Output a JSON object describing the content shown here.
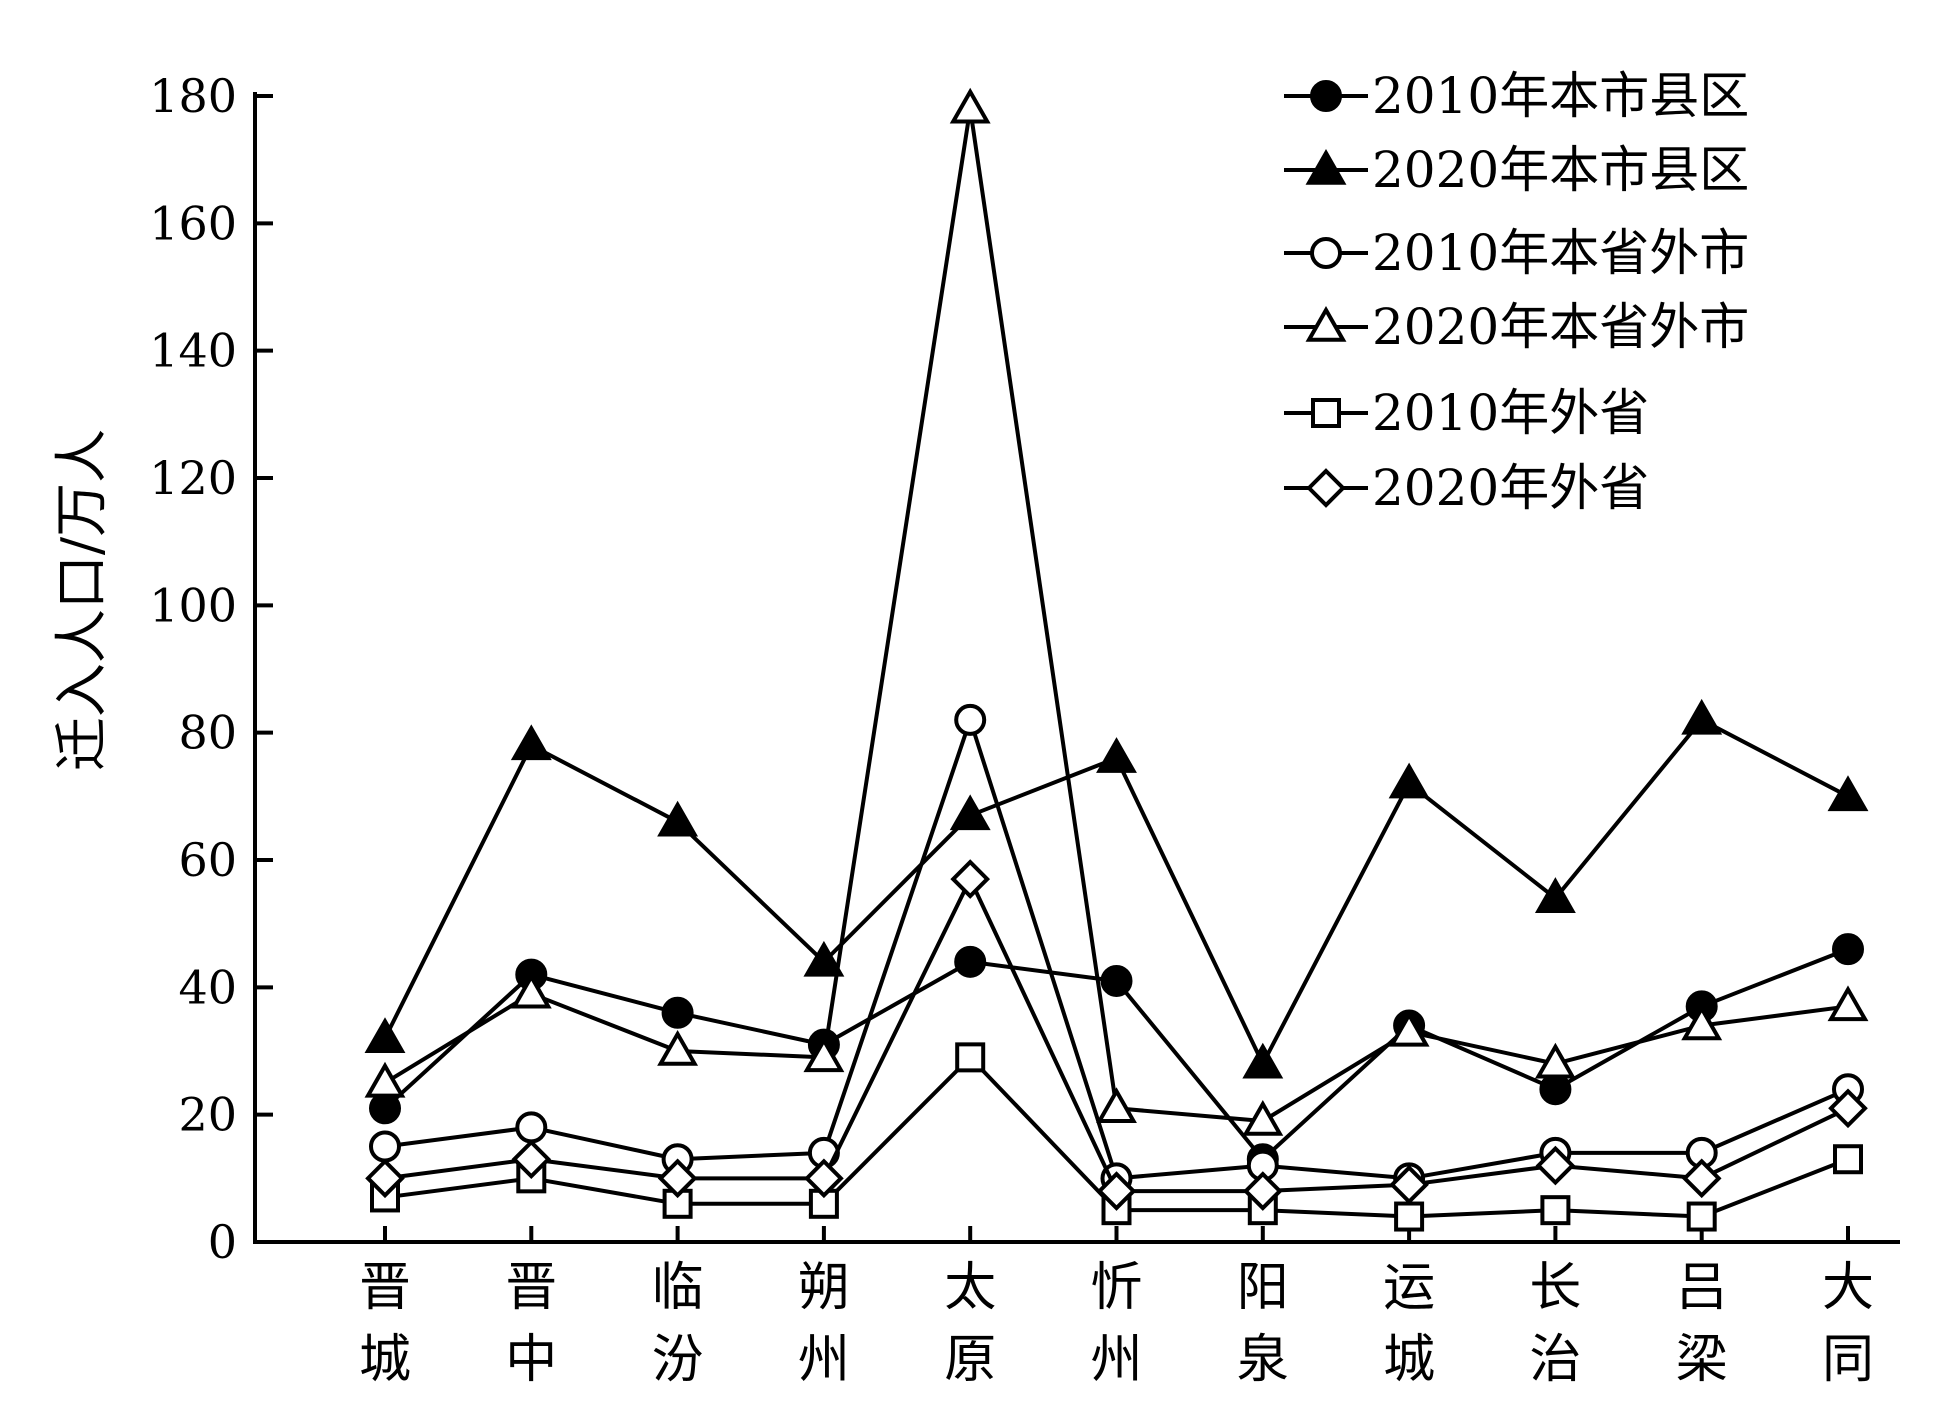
{
  "chart_data": {
    "type": "line",
    "ylabel": "迁入人口/万人",
    "ylim": [
      0,
      180
    ],
    "yticks": [
      0,
      20,
      40,
      60,
      80,
      100,
      120,
      140,
      160,
      180
    ],
    "categories": [
      "晋城",
      "晋中",
      "临汾",
      "朔州",
      "太原",
      "忻州",
      "阳泉",
      "运城",
      "长治",
      "吕梁",
      "大同"
    ],
    "legend_position": "top-right",
    "grid": false,
    "series": [
      {
        "name": "2010年本市县区",
        "marker": "circle-filled",
        "values": [
          21,
          42,
          36,
          31,
          44,
          41,
          13,
          34,
          24,
          37,
          46
        ]
      },
      {
        "name": "2020年本市县区",
        "marker": "triangle-filled",
        "values": [
          32,
          78,
          66,
          44,
          67,
          76,
          28,
          72,
          54,
          82,
          70
        ]
      },
      {
        "name": "2010年本省外市",
        "marker": "circle-open",
        "values": [
          15,
          18,
          13,
          14,
          82,
          10,
          12,
          10,
          14,
          14,
          24
        ]
      },
      {
        "name": "2020年本省外市",
        "marker": "triangle-open",
        "values": [
          25,
          39,
          30,
          29,
          178,
          21,
          19,
          33,
          28,
          34,
          37
        ]
      },
      {
        "name": "2010年外省",
        "marker": "square-open",
        "values": [
          7,
          10,
          6,
          6,
          29,
          5,
          5,
          4,
          5,
          4,
          13
        ]
      },
      {
        "name": "2020年外省",
        "marker": "diamond-open",
        "values": [
          10,
          13,
          10,
          10,
          57,
          8,
          8,
          9,
          12,
          10,
          21
        ]
      }
    ]
  }
}
